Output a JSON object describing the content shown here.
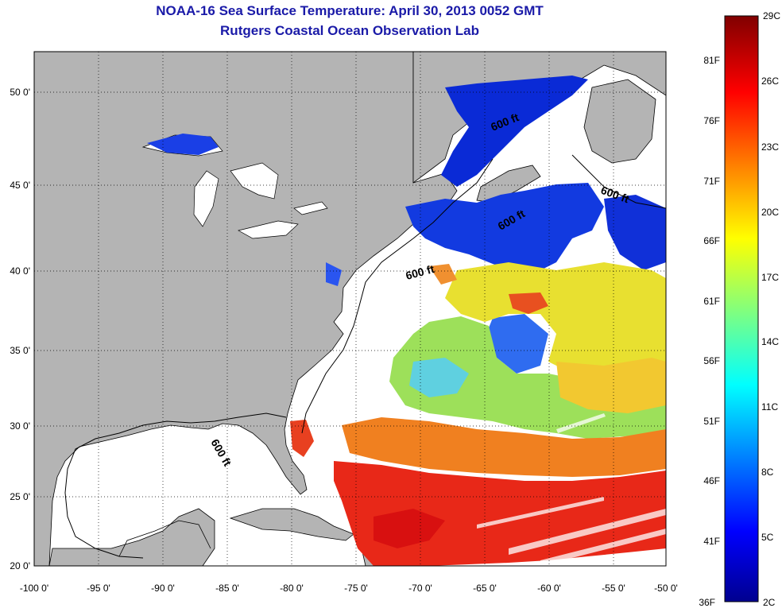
{
  "title": "NOAA-16 Sea Surface Temperature:  April 30, 2013 0052 GMT",
  "subtitle": "Rutgers Coastal Ocean Observation Lab",
  "map": {
    "lon_ticks": [
      "-100 0'",
      "-95 0'",
      "-90 0'",
      "-85 0'",
      "-80 0'",
      "-75 0'",
      "-70 0'",
      "-65 0'",
      "-60 0'",
      "-55 0'",
      "-50 0'"
    ],
    "lat_ticks": [
      "50 0'",
      "45 0'",
      "40 0'",
      "35 0'",
      "30 0'",
      "25 0'",
      "20 0'"
    ],
    "contour_label": "600 ft"
  },
  "colorbar": {
    "celsius": [
      "29C",
      "26C",
      "23C",
      "20C",
      "17C",
      "14C",
      "11C",
      "8C",
      "5C",
      "2C"
    ],
    "fahrenheit": [
      "81F",
      "76F",
      "71F",
      "66F",
      "61F",
      "56F",
      "51F",
      "46F",
      "41F",
      "36F"
    ]
  },
  "colors": {
    "land": "#b4b4b4",
    "cloud": "#ffffff",
    "title": "#1a1aa8"
  }
}
